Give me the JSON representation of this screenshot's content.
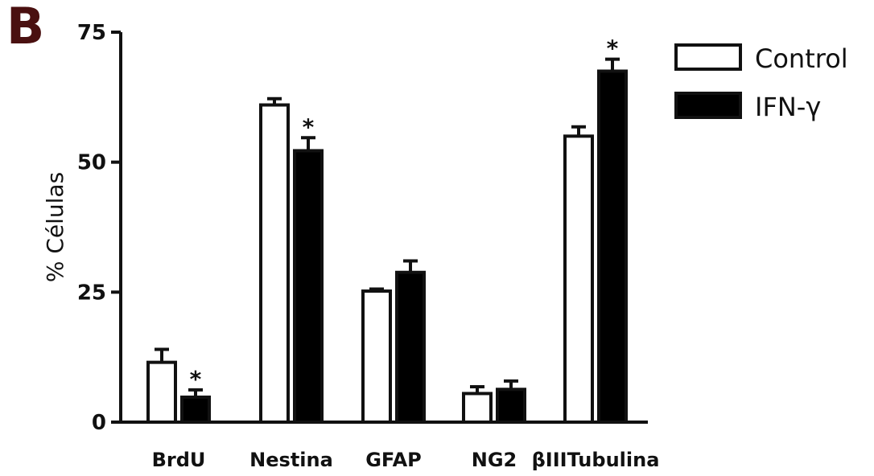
{
  "panel_label": "B",
  "chart_data": {
    "type": "bar",
    "ylabel": "% Células",
    "ylim": [
      0,
      75
    ],
    "yticks": [
      0,
      25,
      50,
      75
    ],
    "categories": [
      "BrdU",
      "Nestina",
      "GFAP",
      "NG2",
      "βIIITubulina"
    ],
    "series": [
      {
        "name": "Control",
        "fill": "#ffffff",
        "values": [
          11.5,
          61,
          25.2,
          5.5,
          55
        ],
        "errors": [
          2.5,
          1.2,
          0.4,
          1.3,
          1.8
        ],
        "significant": [
          false,
          false,
          false,
          false,
          false
        ]
      },
      {
        "name": "IFN-γ",
        "fill": "#000000",
        "values": [
          4.8,
          52.2,
          28.8,
          6.3,
          67.5
        ],
        "errors": [
          1.4,
          2.5,
          2.2,
          1.6,
          2.3
        ],
        "significant": [
          true,
          true,
          false,
          false,
          true
        ]
      }
    ],
    "significance_marker": "*",
    "legend_position": "top-right"
  }
}
